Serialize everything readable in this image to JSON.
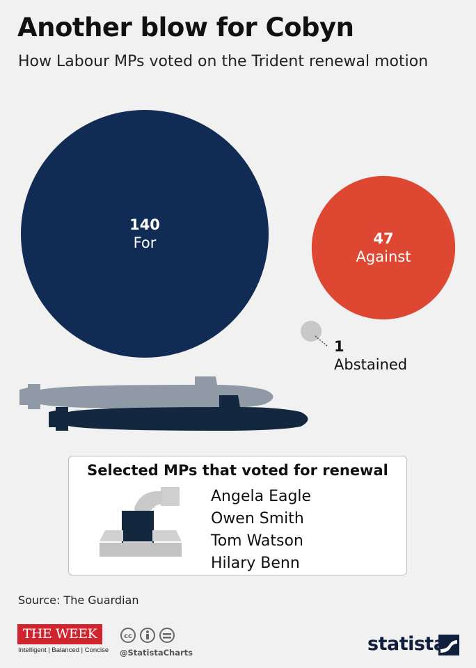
{
  "title": "Another blow for Cobyn",
  "subtitle": "How Labour MPs voted on the Trident renewal motion",
  "chart_data": {
    "type": "bubble",
    "title": "Another blow for Cobyn",
    "subtitle": "How Labour MPs voted on the Trident renewal motion",
    "categories": [
      "For",
      "Against",
      "Abstained"
    ],
    "values": [
      140,
      47,
      1
    ],
    "colors": [
      "#102b54",
      "#de4833",
      "#c8c8c8"
    ]
  },
  "selected_mps": {
    "title": "Selected MPs that voted for renewal",
    "names": [
      "Angela Eagle",
      "Owen Smith",
      "Tom Watson",
      "Hilary Benn"
    ]
  },
  "footer": {
    "source": "Source: The Guardian",
    "theweek_logo": "THE WEEK",
    "theweek_tagline": "Intelligent | Balanced | Concise",
    "handle": "@StatistaCharts",
    "statista": "statista"
  },
  "icons": [
    "submarine-icon",
    "ballot-box-icon",
    "creative-commons-icon",
    "statista-logo-icon"
  ]
}
